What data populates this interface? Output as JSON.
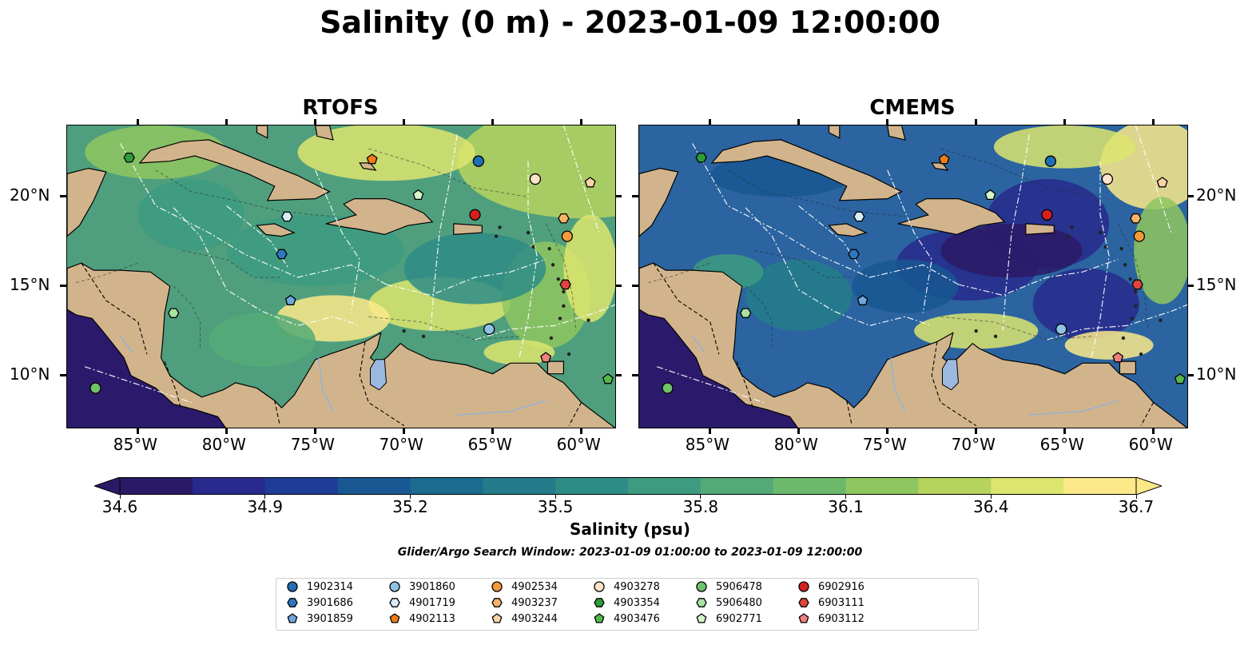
{
  "title": "Salinity (0 m) - 2023-01-09 12:00:00",
  "panels": [
    {
      "title": "RTOFS",
      "variant": "rtofs"
    },
    {
      "title": "CMEMS",
      "variant": "cmems"
    }
  ],
  "map": {
    "lon_range": [
      -89,
      -58
    ],
    "lat_range": [
      7,
      24
    ],
    "x_ticks": [
      {
        "lon": -85,
        "label": "85°W"
      },
      {
        "lon": -80,
        "label": "80°W"
      },
      {
        "lon": -75,
        "label": "75°W"
      },
      {
        "lon": -70,
        "label": "70°W"
      },
      {
        "lon": -65,
        "label": "65°W"
      },
      {
        "lon": -60,
        "label": "60°W"
      }
    ],
    "y_ticks": [
      {
        "lat": 20,
        "label": "20°N"
      },
      {
        "lat": 15,
        "label": "15°N"
      },
      {
        "lat": 10,
        "label": "10°N"
      }
    ],
    "colors": {
      "land": "#d2b48c",
      "lake": "#9bb8e0",
      "deep_pacific": "#2b1a6b"
    }
  },
  "colorbar": {
    "min": 34.6,
    "max": 36.7,
    "ticks": [
      "34.6",
      "34.9",
      "35.2",
      "35.5",
      "35.8",
      "36.1",
      "36.4",
      "36.7"
    ],
    "label": "Salinity (psu)",
    "colormap": [
      "#2a1a66",
      "#28298c",
      "#1f3c96",
      "#185792",
      "#1b6b8e",
      "#247c8a",
      "#2e8c86",
      "#3d9b80",
      "#53aa76",
      "#6db96b",
      "#8fc65f",
      "#b6d35e",
      "#dce56e",
      "#fbe989"
    ]
  },
  "search_window": "Glider/Argo Search Window: 2023-01-09 01:00:00 to 2023-01-09 12:00:00",
  "floats": [
    {
      "id": "1902314",
      "marker": "circle",
      "color": "#1f6fb4",
      "lon": -65.8,
      "lat": 22.0
    },
    {
      "id": "3901686",
      "marker": "hexagon",
      "color": "#2e78c0",
      "lon": -76.9,
      "lat": 16.8
    },
    {
      "id": "3901859",
      "marker": "pentagon",
      "color": "#6fa8dc",
      "lon": -76.4,
      "lat": 14.2
    },
    {
      "id": "3901860",
      "marker": "circle",
      "color": "#8fc3e6",
      "lon": -65.2,
      "lat": 12.6
    },
    {
      "id": "4901719",
      "marker": "hexagon",
      "color": "#d7ecfb",
      "lon": -76.6,
      "lat": 18.9
    },
    {
      "id": "4902113",
      "marker": "pentagon",
      "color": "#f07c18",
      "lon": -71.8,
      "lat": 22.1
    },
    {
      "id": "4902534",
      "marker": "circle",
      "color": "#f39a3a",
      "lon": -60.8,
      "lat": 17.8
    },
    {
      "id": "4903237",
      "marker": "hexagon",
      "color": "#f7b36a",
      "lon": -61.0,
      "lat": 18.8
    },
    {
      "id": "4903244",
      "marker": "pentagon",
      "color": "#fbd3a8",
      "lon": -59.5,
      "lat": 20.8
    },
    {
      "id": "4903278",
      "marker": "circle",
      "color": "#fde3c8",
      "lon": -62.6,
      "lat": 21.0
    },
    {
      "id": "4903354",
      "marker": "hexagon",
      "color": "#2e9c3a",
      "lon": -85.5,
      "lat": 22.2
    },
    {
      "id": "4903476",
      "marker": "pentagon",
      "color": "#55b84a",
      "lon": -58.5,
      "lat": 9.8
    },
    {
      "id": "5906478",
      "marker": "circle",
      "color": "#6fc46a",
      "lon": -87.4,
      "lat": 9.3
    },
    {
      "id": "5906480",
      "marker": "hexagon",
      "color": "#a8e2a0",
      "lon": -83.0,
      "lat": 13.5
    },
    {
      "id": "6902771",
      "marker": "pentagon",
      "color": "#d4f5c8",
      "lon": -69.2,
      "lat": 20.1
    },
    {
      "id": "6902916",
      "marker": "circle",
      "color": "#d62020",
      "lon": -66.0,
      "lat": 19.0
    },
    {
      "id": "6903111",
      "marker": "hexagon",
      "color": "#e0443c",
      "lon": -60.9,
      "lat": 15.1
    },
    {
      "id": "6903112",
      "marker": "pentagon",
      "color": "#ef8080",
      "lon": -62.0,
      "lat": 11.0
    }
  ]
}
